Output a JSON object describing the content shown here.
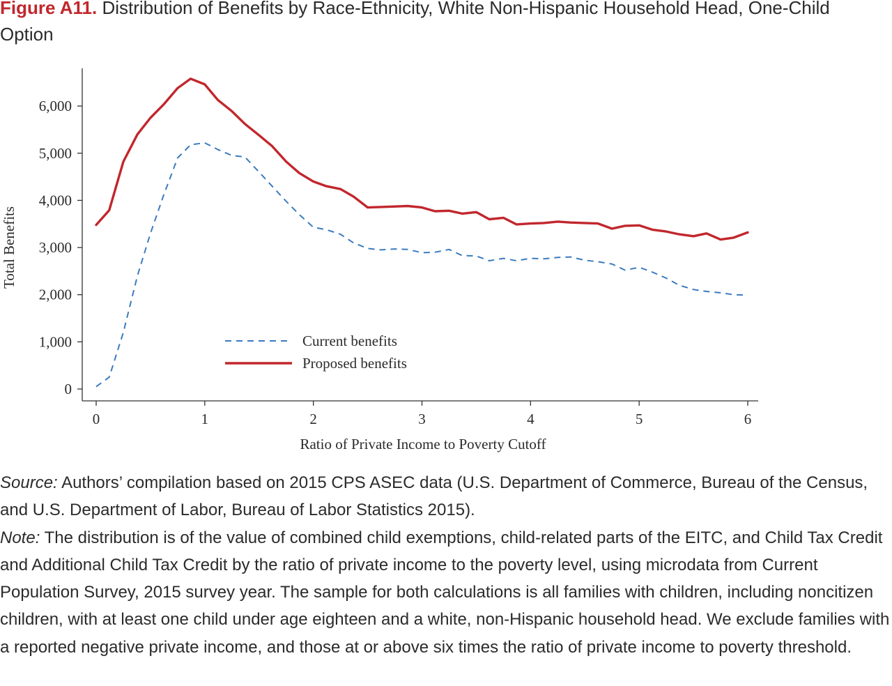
{
  "figure": {
    "label": "Figure A11.",
    "title": "Distribution of Benefits by Race-Ethnicity, White Non-Hispanic Household Head, One-Child Option"
  },
  "source": {
    "label": "Source:",
    "text": "Authors’ compilation based on 2015 CPS ASEC data (U.S. Department of Commerce, Bureau of the Census, and U.S. Department of Labor, Bureau of Labor Statistics 2015)."
  },
  "note": {
    "label": "Note:",
    "text": "The distribution is of the value of combined child exemptions, child-related parts of the EITC, and Child Tax Credit and Additional Child Tax Credit by the ratio of private income to the poverty level, using microdata from Current Population Survey, 2015 survey year. The sample for both calculations is all families with children, including noncitizen children, with at least one child under age eighteen and a white, non-Hispanic household head. We exclude families with a reported negative private income, and those at or above six times the ratio of private income to poverty threshold."
  },
  "chart_data": {
    "type": "line",
    "xlabel": "Ratio of Private Income to Poverty Cutoff",
    "ylabel": "Total Benefits",
    "xlim": [
      0,
      6
    ],
    "ylim": [
      0,
      6800
    ],
    "xticks": [
      0,
      1,
      2,
      3,
      4,
      5,
      6
    ],
    "xtick_labels": [
      "0",
      "1",
      "2",
      "3",
      "4",
      "5",
      "6"
    ],
    "yticks": [
      0,
      1000,
      2000,
      3000,
      4000,
      5000,
      6000
    ],
    "ytick_labels": [
      "0",
      "1,000",
      "2,000",
      "3,000",
      "4,000",
      "5,000",
      "6,000"
    ],
    "grid": false,
    "legend": "inside, lower middle",
    "series": [
      {
        "name": "Current benefits",
        "style": "dashed",
        "color": "#3b7bbf",
        "x": [
          0,
          0.12,
          0.25,
          0.38,
          0.5,
          0.62,
          0.75,
          0.87,
          1.0,
          1.12,
          1.25,
          1.37,
          1.5,
          1.62,
          1.75,
          1.87,
          2.0,
          2.12,
          2.25,
          2.37,
          2.5,
          2.62,
          2.75,
          2.87,
          3.0,
          3.12,
          3.25,
          3.37,
          3.5,
          3.62,
          3.75,
          3.87,
          4.0,
          4.12,
          4.25,
          4.37,
          4.5,
          4.62,
          4.75,
          4.87,
          5.0,
          5.12,
          5.25,
          5.37,
          5.5,
          5.62,
          5.75,
          5.87,
          6.0
        ],
        "y": [
          50,
          250,
          1200,
          2400,
          3300,
          4100,
          4900,
          5180,
          5220,
          5080,
          4950,
          4920,
          4600,
          4300,
          3980,
          3700,
          3430,
          3380,
          3280,
          3100,
          2980,
          2950,
          2970,
          2960,
          2890,
          2900,
          2960,
          2830,
          2820,
          2720,
          2770,
          2720,
          2770,
          2760,
          2790,
          2800,
          2730,
          2700,
          2650,
          2520,
          2580,
          2480,
          2350,
          2200,
          2110,
          2070,
          2040,
          2000,
          1990
        ]
      },
      {
        "name": "Proposed benefits",
        "style": "solid",
        "color": "#c1272d",
        "x": [
          0,
          0.12,
          0.25,
          0.38,
          0.5,
          0.62,
          0.75,
          0.87,
          1.0,
          1.12,
          1.25,
          1.37,
          1.5,
          1.62,
          1.75,
          1.87,
          2.0,
          2.12,
          2.25,
          2.37,
          2.5,
          2.62,
          2.75,
          2.87,
          3.0,
          3.12,
          3.25,
          3.37,
          3.5,
          3.62,
          3.75,
          3.87,
          4.0,
          4.12,
          4.25,
          4.37,
          4.5,
          4.62,
          4.75,
          4.87,
          5.0,
          5.12,
          5.25,
          5.37,
          5.5,
          5.62,
          5.75,
          5.87,
          6.0
        ],
        "y": [
          3480,
          3790,
          4820,
          5400,
          5750,
          6030,
          6380,
          6580,
          6460,
          6130,
          5890,
          5620,
          5380,
          5150,
          4820,
          4580,
          4400,
          4300,
          4240,
          4080,
          3850,
          3860,
          3870,
          3880,
          3850,
          3770,
          3780,
          3720,
          3750,
          3600,
          3630,
          3490,
          3510,
          3520,
          3550,
          3530,
          3520,
          3510,
          3400,
          3460,
          3470,
          3380,
          3340,
          3280,
          3240,
          3300,
          3170,
          3210,
          3320
        ]
      }
    ]
  }
}
